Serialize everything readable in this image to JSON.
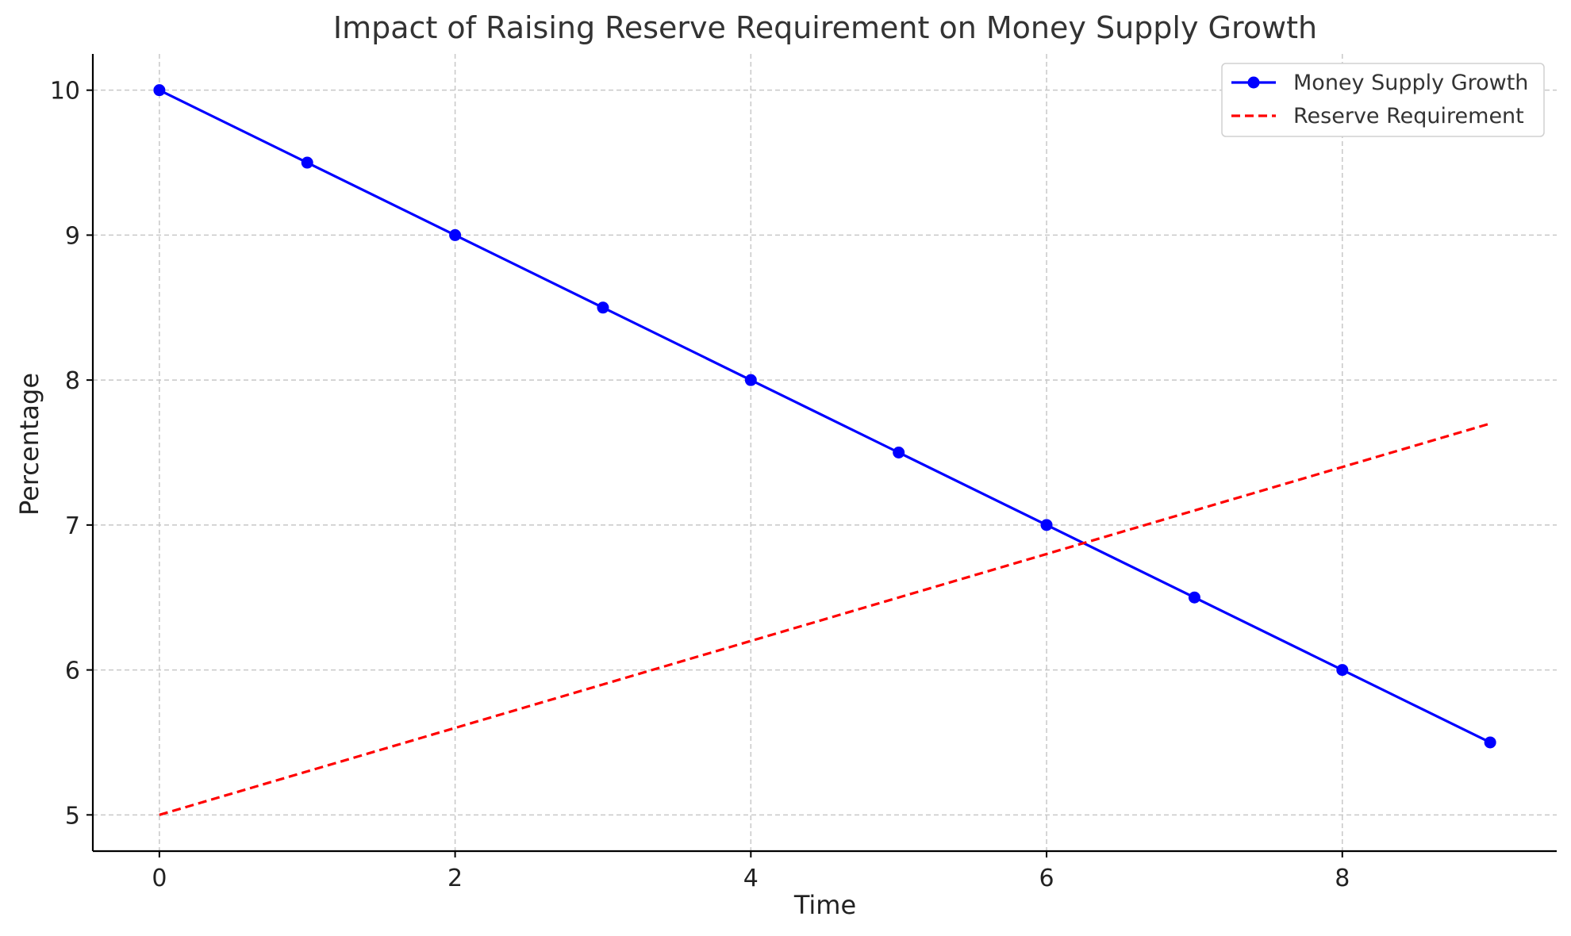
{
  "chart_data": {
    "type": "line",
    "title": "Impact of Raising Reserve Requirement on Money Supply Growth",
    "xlabel": "Time",
    "ylabel": "Percentage",
    "xlim": [
      -0.45,
      9.45
    ],
    "ylim": [
      4.75,
      10.25
    ],
    "xticks": [
      0,
      2,
      4,
      6,
      8
    ],
    "yticks": [
      5,
      6,
      7,
      8,
      9,
      10
    ],
    "grid": true,
    "legend_position": "top-right",
    "series": [
      {
        "name": "Money Supply Growth",
        "color": "#0000ff",
        "style": "solid",
        "marker": "circle",
        "x": [
          0,
          1,
          2,
          3,
          4,
          5,
          6,
          7,
          8,
          9
        ],
        "y": [
          10,
          9.5,
          9,
          8.5,
          8,
          7.5,
          7,
          6.5,
          6,
          5.5
        ]
      },
      {
        "name": "Reserve Requirement",
        "color": "#ff0000",
        "style": "dashed",
        "marker": "none",
        "x": [
          0,
          1,
          2,
          3,
          4,
          5,
          6,
          7,
          8,
          9
        ],
        "y": [
          5,
          5.3,
          5.6,
          5.9,
          6.2,
          6.5,
          6.8,
          7.1,
          7.4,
          7.7
        ]
      }
    ]
  }
}
